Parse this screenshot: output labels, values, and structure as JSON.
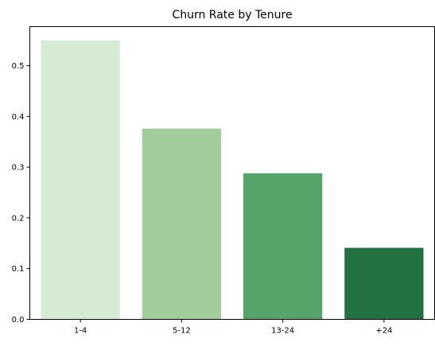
{
  "chart_data": {
    "type": "bar",
    "title": "Churn Rate by Tenure",
    "xlabel": "",
    "ylabel": "",
    "categories": [
      "1-4",
      "5-12",
      "13-24",
      "+24"
    ],
    "values": [
      0.55,
      0.376,
      0.288,
      0.141
    ],
    "colors": [
      "#d6ebd3",
      "#a1cd9a",
      "#57a46b",
      "#217240"
    ],
    "ylim": [
      0,
      0.577
    ],
    "yticks": [
      "0.0",
      "0.1",
      "0.2",
      "0.3",
      "0.4",
      "0.5"
    ],
    "grid": false,
    "legend": "none"
  }
}
